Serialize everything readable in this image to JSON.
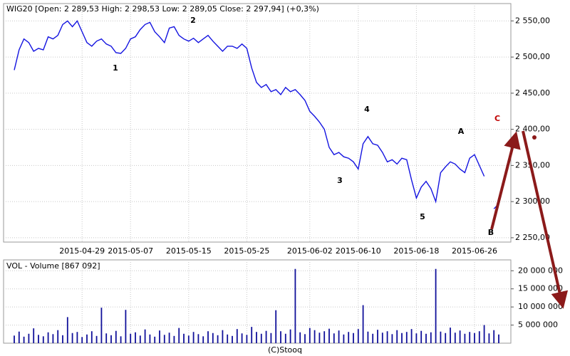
{
  "chart_data": [
    {
      "type": "line",
      "title": "WIG20 [Open: 2 289,53  High: 2 298,53  Low: 2 289,05  Close: 2 297,94] (+0,3%)",
      "categories": [
        null,
        null,
        null,
        null,
        null,
        null,
        null,
        null,
        null,
        null,
        null,
        null,
        null,
        null,
        "2015-04-29",
        null,
        null,
        null,
        null,
        null,
        null,
        null,
        null,
        null,
        "2015-05-07",
        null,
        null,
        null,
        null,
        null,
        null,
        null,
        null,
        null,
        null,
        null,
        "2015-05-15",
        null,
        null,
        null,
        null,
        null,
        null,
        null,
        null,
        null,
        null,
        null,
        "2015-05-25",
        null,
        null,
        null,
        null,
        null,
        null,
        null,
        null,
        null,
        null,
        null,
        null,
        "2015-06-02",
        null,
        null,
        null,
        null,
        null,
        null,
        null,
        null,
        null,
        "2015-06-10",
        null,
        null,
        null,
        null,
        null,
        null,
        null,
        null,
        null,
        null,
        null,
        "2015-06-18",
        null,
        null,
        null,
        null,
        null,
        null,
        null,
        null,
        null,
        null,
        null,
        "2015-06-26",
        null,
        null,
        null,
        null,
        null
      ],
      "series": [
        {
          "name": "WIG20",
          "color": "#1414e0",
          "values": [
            2482,
            2510,
            2525,
            2520,
            2508,
            2512,
            2510,
            2528,
            2525,
            2530,
            2545,
            2550,
            2542,
            2550,
            2535,
            2520,
            2515,
            2522,
            2525,
            2518,
            2515,
            2506,
            2505,
            2512,
            2525,
            2528,
            2538,
            2545,
            2548,
            2535,
            2528,
            2520,
            2540,
            2542,
            2530,
            2525,
            2522,
            2526,
            2520,
            2525,
            2530,
            2522,
            2515,
            2508,
            2515,
            2515,
            2512,
            2518,
            2512,
            2485,
            2465,
            2458,
            2462,
            2452,
            2455,
            2448,
            2458,
            2452,
            2455,
            2448,
            2440,
            2425,
            2418,
            2410,
            2400,
            2375,
            2365,
            2368,
            2362,
            2360,
            2355,
            2345,
            2380,
            2390,
            2380,
            2378,
            2368,
            2355,
            2358,
            2352,
            2360,
            2358,
            2330,
            2305,
            2320,
            2328,
            2318,
            2300,
            2340,
            2348,
            2355,
            2352,
            2345,
            2340,
            2360,
            2365,
            2350,
            2335,
            null,
            2290,
            2297
          ]
        }
      ],
      "ylim": [
        2244,
        2574
      ],
      "yticks": [
        {
          "value": 2250,
          "label": "2 250,00"
        },
        {
          "value": 2300,
          "label": "2 300,00"
        },
        {
          "value": 2350,
          "label": "2 350,00"
        },
        {
          "value": 2400,
          "label": "2 400,00"
        },
        {
          "value": 2450,
          "label": "2 450,00"
        },
        {
          "value": 2500,
          "label": "2 500,00"
        },
        {
          "value": 2550,
          "label": "2 550,00"
        }
      ],
      "grid": true,
      "annotations": [
        "1",
        "2",
        "3",
        "4",
        "5",
        "A",
        "B",
        "C"
      ]
    },
    {
      "type": "bar",
      "title": "VOL - Volume [867 092]",
      "color": "#10109a",
      "values": [
        2100000,
        3200000,
        1800000,
        2600000,
        4100000,
        2300000,
        1900000,
        3000000,
        2500000,
        3600000,
        2200000,
        7200000,
        2800000,
        3100000,
        1700000,
        2400000,
        3300000,
        2000000,
        9800000,
        2700000,
        2200000,
        3400000,
        1900000,
        9200000,
        2600000,
        3000000,
        2100000,
        3800000,
        2400000,
        1800000,
        3500000,
        2300000,
        2900000,
        2000000,
        4200000,
        2600000,
        2100000,
        3100000,
        2500000,
        1900000,
        3300000,
        2800000,
        2200000,
        3600000,
        2400000,
        2000000,
        3900000,
        2700000,
        2300000,
        4500000,
        3100000,
        2600000,
        3400000,
        2800000,
        9100000,
        3300000,
        2600000,
        3800000,
        20500000,
        3000000,
        2500000,
        4200000,
        3600000,
        2900000,
        3300000,
        4000000,
        2700000,
        3500000,
        2400000,
        3100000,
        2800000,
        3900000,
        10500000,
        3200000,
        2600000,
        3700000,
        2900000,
        3300000,
        2500000,
        3600000,
        2800000,
        3100000,
        3900000,
        2700000,
        3400000,
        2600000,
        3000000,
        20500000,
        3200000,
        2800000,
        4300000,
        2900000,
        3500000,
        2600000,
        3100000,
        2800000,
        3300000,
        5000000,
        2700000,
        3600000,
        2400000
      ],
      "ylim": [
        0,
        23000000
      ],
      "yticks": [
        {
          "value": 5000000,
          "label": "5 000 000"
        },
        {
          "value": 10000000,
          "label": "10 000 000"
        },
        {
          "value": 15000000,
          "label": "15 000 000"
        },
        {
          "value": 20000000,
          "label": "20 000 000"
        }
      ],
      "grid": true
    },
    {
      "type": "note",
      "text": "(C)Stooq"
    }
  ]
}
